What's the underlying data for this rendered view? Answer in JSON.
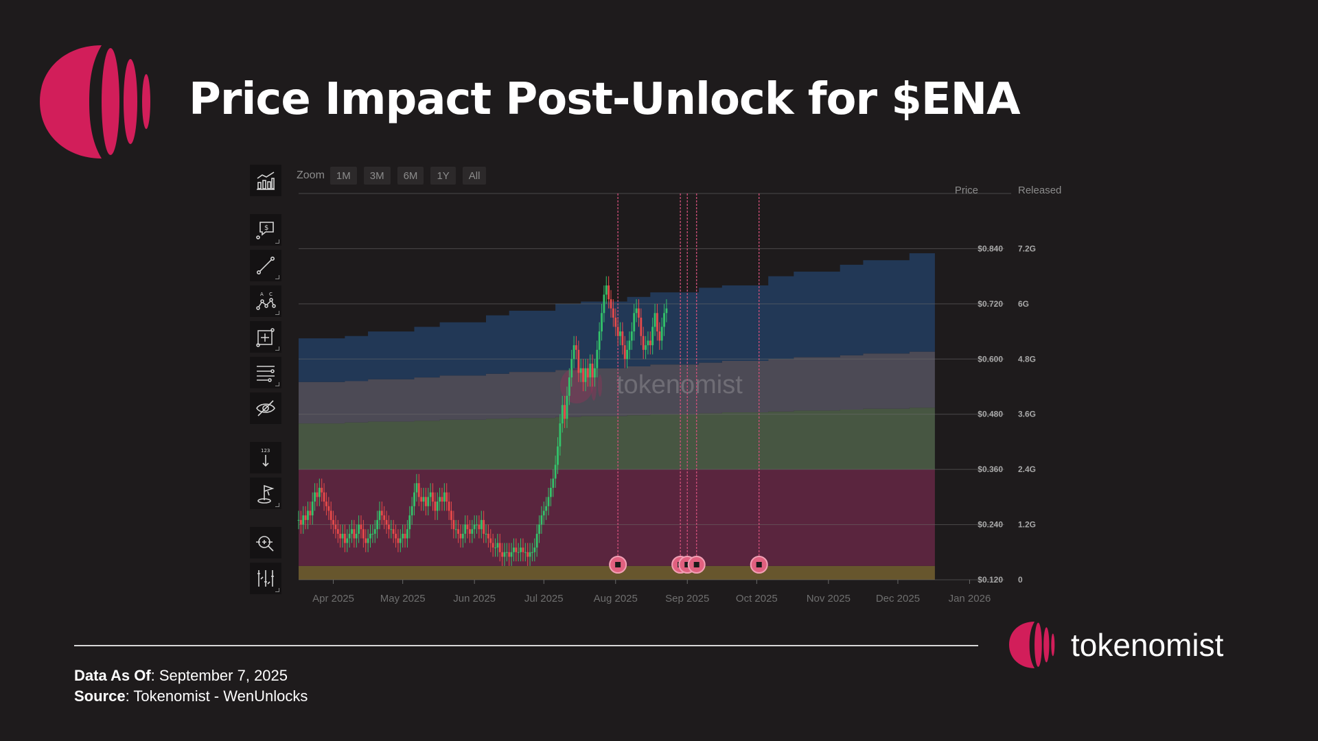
{
  "title": "Price Impact Post-Unlock for $ENA",
  "brand": {
    "name": "tokenomist",
    "color": "#d21e5a"
  },
  "zoom": {
    "label": "Zoom",
    "buttons": [
      "1M",
      "3M",
      "6M",
      "1Y",
      "All"
    ]
  },
  "toolbar": [
    "chart-type-icon",
    "price-note-icon",
    "trend-line-icon",
    "pattern-icon",
    "measure-icon",
    "indicators-icon",
    "hide-drawings-icon",
    "price-scale-icon",
    "marker-flag-icon",
    "crosshair-zoom-icon",
    "settings-sliders-icon"
  ],
  "footer": {
    "data_as_of_label": "Data As Of",
    "data_as_of_value": ": September 7, 2025",
    "source_label": "Source",
    "source_value": ": Tokenomist - WenUnlocks"
  },
  "chart_data": {
    "type": "area+candlestick",
    "watermark": "tokenomist",
    "axis_headers": {
      "price": "Price",
      "released": "Released"
    },
    "x_tick_labels": [
      "Apr 2025",
      "May 2025",
      "Jun 2025",
      "Jul 2025",
      "Aug 2025",
      "Sep 2025",
      "Oct 2025",
      "Nov 2025",
      "Dec 2025",
      "Jan 2026"
    ],
    "x_range_days": [
      0,
      305
    ],
    "x_tick_days": [
      15,
      45,
      76,
      106,
      137,
      168,
      198,
      229,
      259,
      290
    ],
    "price_axis": {
      "ticks": [
        "$0.840",
        "$0.720",
        "$0.600",
        "$0.480",
        "$0.360",
        "$0.240",
        "$0.120"
      ],
      "ylim": [
        0.12,
        0.96
      ]
    },
    "released_axis": {
      "ticks": [
        "7.2G",
        "6G",
        "4.8G",
        "3.6G",
        "2.4G",
        "1.2G",
        "0"
      ],
      "ylim": [
        0,
        8.4
      ]
    },
    "stack_colors": [
      "#6b5a2e",
      "#5e2640",
      "#4a5a45",
      "#4f4d58",
      "#233a5a"
    ],
    "stack_steps": [
      {
        "day": 0,
        "totals": [
          0.3,
          2.4,
          3.4,
          4.3,
          5.25
        ]
      },
      {
        "day": 20,
        "totals": [
          0.3,
          2.4,
          3.42,
          4.32,
          5.3
        ]
      },
      {
        "day": 30,
        "totals": [
          0.3,
          2.4,
          3.44,
          4.36,
          5.4
        ]
      },
      {
        "day": 50,
        "totals": [
          0.3,
          2.4,
          3.46,
          4.4,
          5.5
        ]
      },
      {
        "day": 61,
        "totals": [
          0.3,
          2.4,
          3.48,
          4.44,
          5.6
        ]
      },
      {
        "day": 81,
        "totals": [
          0.3,
          2.4,
          3.5,
          4.48,
          5.75
        ]
      },
      {
        "day": 91,
        "totals": [
          0.3,
          2.4,
          3.52,
          4.52,
          5.85
        ]
      },
      {
        "day": 111,
        "totals": [
          0.3,
          2.4,
          3.54,
          4.56,
          6.0
        ]
      },
      {
        "day": 122,
        "totals": [
          0.3,
          2.4,
          3.56,
          4.6,
          6.05
        ]
      },
      {
        "day": 142,
        "totals": [
          0.3,
          2.4,
          3.58,
          4.64,
          6.15
        ]
      },
      {
        "day": 152,
        "totals": [
          0.3,
          2.4,
          3.6,
          4.68,
          6.25
        ]
      },
      {
        "day": 173,
        "totals": [
          0.3,
          2.4,
          3.62,
          4.72,
          6.35
        ]
      },
      {
        "day": 183,
        "totals": [
          0.3,
          2.4,
          3.64,
          4.76,
          6.4
        ]
      },
      {
        "day": 203,
        "totals": [
          0.3,
          2.4,
          3.66,
          4.8,
          6.6
        ]
      },
      {
        "day": 214,
        "totals": [
          0.3,
          2.4,
          3.68,
          4.84,
          6.7
        ]
      },
      {
        "day": 234,
        "totals": [
          0.3,
          2.4,
          3.7,
          4.88,
          6.85
        ]
      },
      {
        "day": 244,
        "totals": [
          0.3,
          2.4,
          3.72,
          4.92,
          6.95
        ]
      },
      {
        "day": 264,
        "totals": [
          0.3,
          2.4,
          3.74,
          4.96,
          7.1
        ]
      },
      {
        "day": 275,
        "totals": [
          0.3,
          2.4,
          3.76,
          5.0,
          7.2
        ]
      }
    ],
    "price_series": {
      "start_day": 0,
      "step_days": 1,
      "close": [
        0.25,
        0.24,
        0.26,
        0.25,
        0.27,
        0.26,
        0.29,
        0.31,
        0.3,
        0.32,
        0.31,
        0.29,
        0.28,
        0.27,
        0.25,
        0.24,
        0.23,
        0.22,
        0.21,
        0.22,
        0.2,
        0.21,
        0.22,
        0.23,
        0.21,
        0.22,
        0.24,
        0.23,
        0.21,
        0.2,
        0.21,
        0.22,
        0.22,
        0.23,
        0.25,
        0.27,
        0.26,
        0.25,
        0.24,
        0.23,
        0.23,
        0.22,
        0.21,
        0.2,
        0.21,
        0.22,
        0.21,
        0.23,
        0.26,
        0.28,
        0.31,
        0.33,
        0.3,
        0.29,
        0.3,
        0.28,
        0.3,
        0.31,
        0.29,
        0.27,
        0.29,
        0.3,
        0.29,
        0.31,
        0.29,
        0.27,
        0.25,
        0.23,
        0.23,
        0.22,
        0.21,
        0.22,
        0.24,
        0.23,
        0.22,
        0.23,
        0.24,
        0.24,
        0.23,
        0.25,
        0.22,
        0.22,
        0.21,
        0.2,
        0.19,
        0.19,
        0.2,
        0.18,
        0.17,
        0.18,
        0.18,
        0.17,
        0.18,
        0.19,
        0.18,
        0.18,
        0.19,
        0.18,
        0.18,
        0.17,
        0.18,
        0.18,
        0.19,
        0.22,
        0.24,
        0.26,
        0.27,
        0.28,
        0.3,
        0.32,
        0.34,
        0.37,
        0.41,
        0.46,
        0.5,
        0.47,
        0.52,
        0.56,
        0.6,
        0.63,
        0.62,
        0.57,
        0.58,
        0.55,
        0.58,
        0.56,
        0.59,
        0.56,
        0.58,
        0.62,
        0.66,
        0.7,
        0.74,
        0.76,
        0.73,
        0.71,
        0.69,
        0.67,
        0.65,
        0.66,
        0.63,
        0.6,
        0.62,
        0.64,
        0.66,
        0.7,
        0.71,
        0.69,
        0.65,
        0.62,
        0.63,
        0.64,
        0.63,
        0.67,
        0.7,
        0.66,
        0.64,
        0.67,
        0.7,
        0.71
      ],
      "high_offset": 0.02,
      "low_offset": 0.02
    },
    "unlock_events": [
      {
        "day": 138
      },
      {
        "day": 165
      },
      {
        "day": 168
      },
      {
        "day": 172
      },
      {
        "day": 199
      }
    ]
  }
}
